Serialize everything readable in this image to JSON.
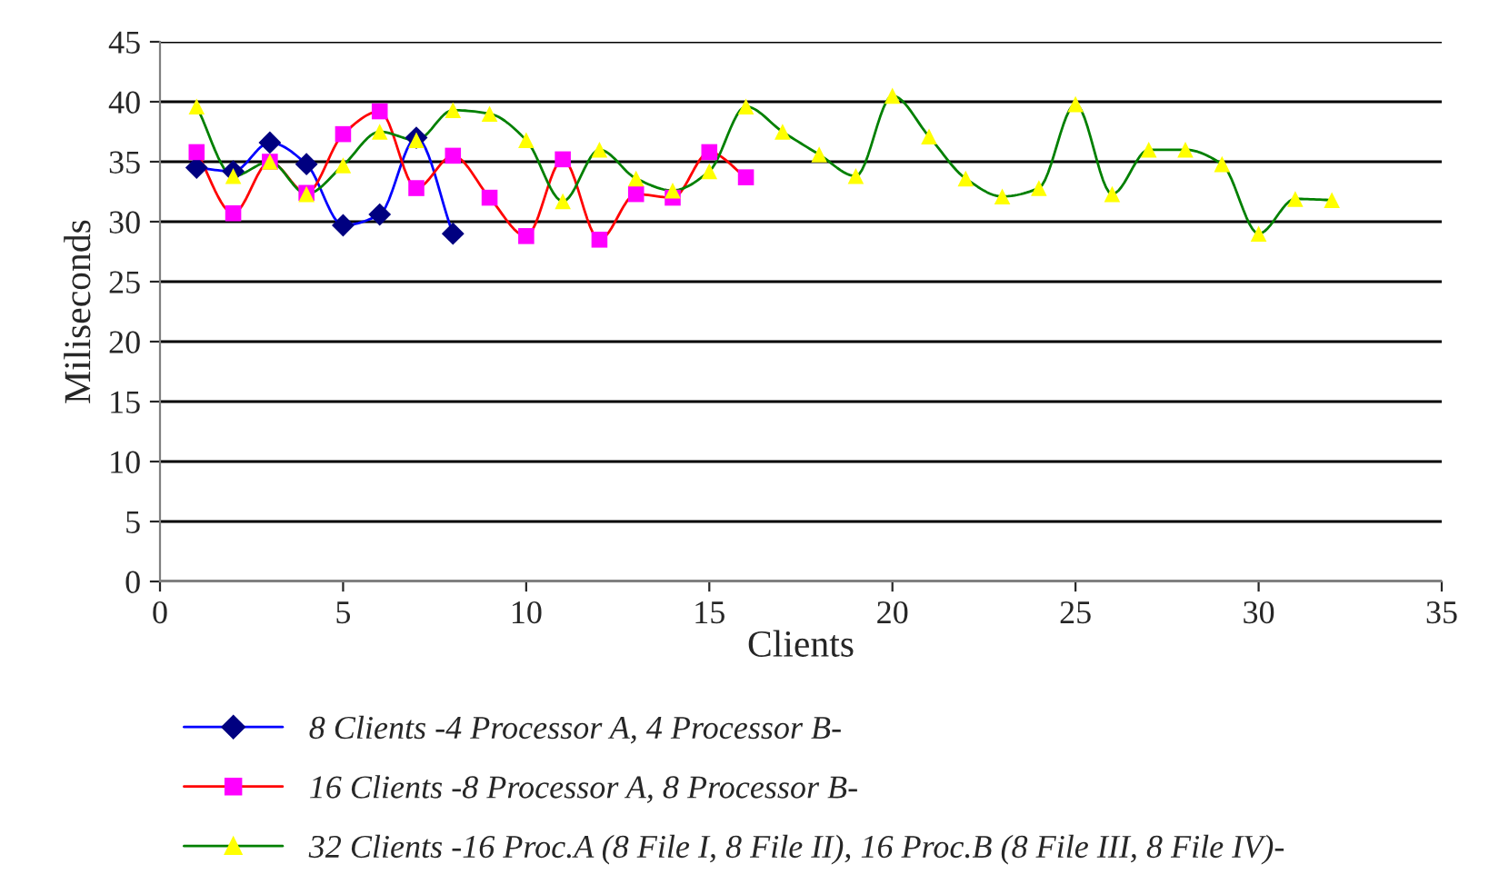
{
  "chart_data": {
    "type": "line",
    "xlabel": "Clients",
    "ylabel": "Miliseconds",
    "xlim": [
      0,
      35
    ],
    "ylim": [
      0,
      45
    ],
    "xticks": [
      0,
      5,
      10,
      15,
      20,
      25,
      30,
      35
    ],
    "yticks": [
      0,
      5,
      10,
      15,
      20,
      25,
      30,
      35,
      40,
      45
    ],
    "grid": "y",
    "legend": "bottom",
    "line_style": "solid",
    "series": [
      {
        "name": "8 Clients -4 Processor A, 4 Processor B-",
        "color": "#0000ff",
        "colors": [
          "#000080",
          "#000080",
          "#000080",
          "#000080",
          "#000080",
          "#000080",
          "#000080",
          "#000080"
        ],
        "marker": "diamond",
        "x": [
          1,
          2,
          3,
          4,
          5,
          6,
          7,
          8
        ],
        "values": [
          34.5,
          34.2,
          36.6,
          34.8,
          29.7,
          30.6,
          37,
          29
        ]
      },
      {
        "name": "16 Clients -8 Processor A, 8 Processor B-",
        "color": "#ff0000",
        "colors": [
          "#ff00ff",
          "#ff00ff",
          "#ff00ff",
          "#ff00ff",
          "#ff00ff",
          "#ff00ff",
          "#ff00ff",
          "#ff00ff",
          "#ff00ff",
          "#ff00ff",
          "#ff00ff",
          "#ff00ff",
          "#ff00ff",
          "#ff00ff",
          "#ff00ff",
          "#ff00ff"
        ],
        "marker": "square",
        "x": [
          1,
          2,
          3,
          4,
          5,
          6,
          7,
          8,
          9,
          10,
          11,
          12,
          13,
          14,
          15,
          16
        ],
        "values": [
          35.8,
          30.7,
          35,
          32.4,
          37.3,
          39.2,
          32.8,
          35.5,
          32,
          28.8,
          35.2,
          28.5,
          32.3,
          32,
          35.8,
          33.7
        ]
      },
      {
        "name": "32 Clients -16 Proc.A (8 File I, 8 File II), 16 Proc.B (8 File III, 8 File IV)-",
        "color": "#008000",
        "colors": [
          "#ffff00",
          "#ffff00",
          "#ffff00",
          "#ffff00",
          "#ffff00",
          "#ffff00",
          "#ffff00",
          "#ffff00",
          "#ffff00",
          "#ffff00",
          "#ffff00",
          "#ffff00",
          "#ffff00",
          "#ffff00",
          "#ffff00",
          "#ffff00",
          "#ffff00",
          "#ffff00",
          "#ffff00",
          "#ffff00",
          "#ffff00",
          "#ffff00",
          "#ffff00",
          "#ffff00",
          "#ffff00",
          "#ffff00",
          "#ffff00",
          "#ffff00",
          "#ffff00",
          "#ffff00",
          "#ffff00",
          "#ffff00"
        ],
        "marker": "triangle",
        "x": [
          1,
          2,
          3,
          4,
          5,
          6,
          7,
          8,
          9,
          10,
          11,
          12,
          13,
          14,
          15,
          16,
          17,
          18,
          19,
          20,
          21,
          22,
          23,
          24,
          25,
          26,
          27,
          28,
          29,
          30,
          31,
          32
        ],
        "values": [
          39.6,
          33.8,
          35,
          32.3,
          34.7,
          37.5,
          36.8,
          39.3,
          39,
          36.8,
          31.7,
          36,
          33.6,
          32.6,
          34.2,
          39.6,
          37.5,
          35.6,
          33.8,
          40.5,
          37.1,
          33.6,
          32.1,
          32.8,
          39.8,
          32.3,
          36,
          36,
          34.8,
          29,
          31.9,
          31.8
        ]
      }
    ]
  }
}
